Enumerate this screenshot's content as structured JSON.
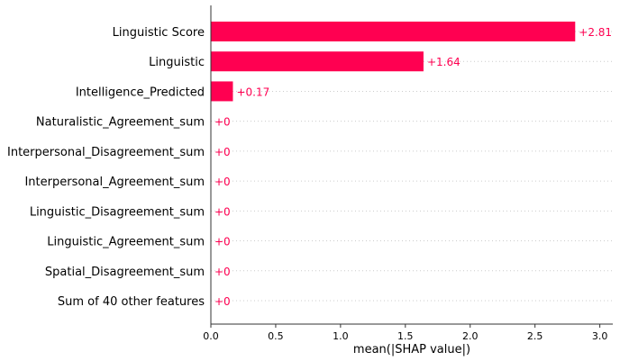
{
  "chart_data": {
    "type": "bar",
    "orientation": "horizontal",
    "categories": [
      "Linguistic Score",
      "Linguistic",
      "Intelligence_Predicted",
      "Naturalistic_Agreement_sum",
      "Interpersonal_Disagreement_sum",
      "Interpersonal_Agreement_sum",
      "Linguistic_Disagreement_sum",
      "Linguistic_Agreement_sum",
      "Spatial_Disagreement_sum",
      "Sum of 40 other features"
    ],
    "values": [
      2.81,
      1.64,
      0.17,
      0,
      0,
      0,
      0,
      0,
      0,
      0
    ],
    "value_labels": [
      "+2.81",
      "+1.64",
      "+0.17",
      "+0",
      "+0",
      "+0",
      "+0",
      "+0",
      "+0",
      "+0"
    ],
    "xlabel": "mean(|SHAP value|)",
    "xlim": [
      0,
      3.1
    ],
    "xticks": [
      0.0,
      0.5,
      1.0,
      1.5,
      2.0,
      2.5,
      3.0
    ],
    "xtick_labels": [
      "0.0",
      "0.5",
      "1.0",
      "1.5",
      "2.0",
      "2.5",
      "3.0"
    ],
    "grid": "dotted horizontal row lines",
    "colors": {
      "bar": "#ff0051",
      "value_label": "#ff0051",
      "grid": "#cccccc",
      "axis": "#333333"
    }
  }
}
